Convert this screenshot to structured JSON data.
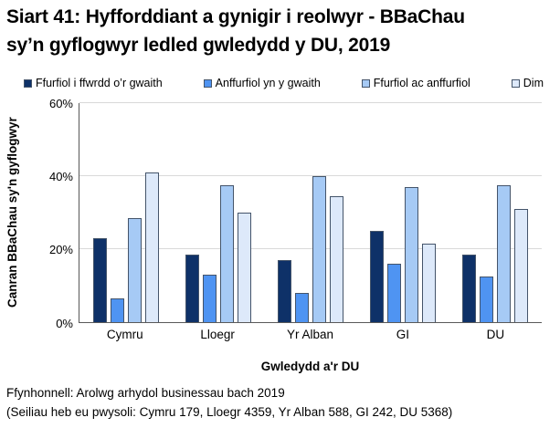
{
  "title": "Siart 41: Hyfforddiant a gynigir i reolwyr - BBaChau\nsy’n gyflogwyr ledled gwledydd y DU, 2019",
  "chart_data": {
    "type": "bar",
    "title": "Siart 41: Hyfforddiant a gynigir i reolwyr - BBaChau sy’n gyflogwyr ledled gwledydd y DU, 2019",
    "categories": [
      "Cymru",
      "Lloegr",
      "Yr Alban",
      "GI",
      "DU"
    ],
    "series": [
      {
        "name": "Ffurfiol i ffwrdd o’r gwaith",
        "color": "#0e3168",
        "values": [
          23,
          18.5,
          17,
          25,
          18.5
        ]
      },
      {
        "name": "Anffurfiol yn y gwaith",
        "color": "#4f94f2",
        "values": [
          6.5,
          13,
          8,
          16,
          12.5
        ]
      },
      {
        "name": "Ffurfiol ac anffurfiol",
        "color": "#a6caf5",
        "values": [
          28.5,
          37.5,
          40,
          37,
          37.5
        ]
      },
      {
        "name": "Dim",
        "color": "#dde9fa",
        "values": [
          41,
          30,
          34.5,
          21.5,
          31
        ]
      }
    ],
    "xlabel": "Gwledydd a'r DU",
    "ylabel": "Canran BBaChau sy'n gyflogwyr",
    "ylim": [
      0,
      60
    ],
    "yticks": [
      0,
      20,
      40,
      60
    ],
    "ytick_labels": [
      "0%",
      "20%",
      "40%",
      "60%"
    ],
    "grid": true,
    "legend_position": "top",
    "colors": {
      "grid": "#d9d9d9",
      "axis": "#595959",
      "bar_border": "#44546a",
      "text": "#000000"
    }
  },
  "footnotes": [
    "Ffynhonnell: Arolwg arhydol businessau bach 2019",
    "(Seiliau heb eu pwysoli: Cymru 179, Lloegr 4359, Yr Alban 588, GI 242, DU 5368)"
  ]
}
